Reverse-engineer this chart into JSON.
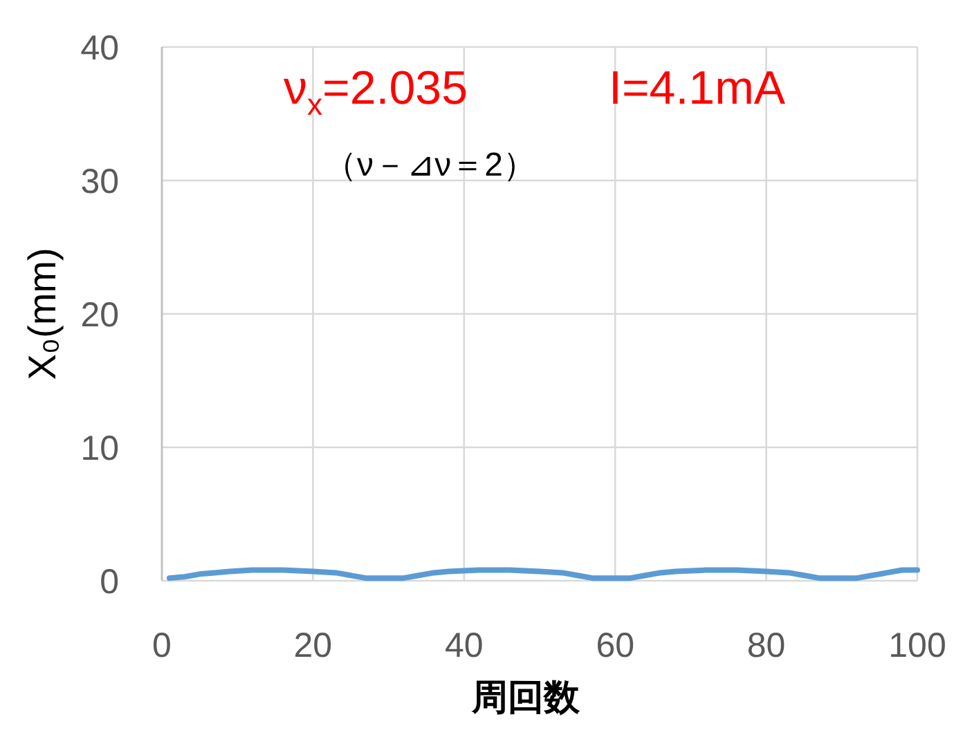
{
  "chart_data": {
    "type": "line",
    "xlabel": "周回数",
    "ylabel": "X₀(mm)",
    "annotations": [
      "ν$_{x}$=2.035",
      "I=4.1mA",
      "（ν－⊿ν＝2）"
    ],
    "xlim": [
      0,
      100
    ],
    "xticks": [
      0,
      20,
      40,
      60,
      80,
      100
    ],
    "ylim": [
      0,
      40
    ],
    "yticks": [
      0,
      10,
      20,
      30,
      40
    ],
    "grid": true,
    "marker": "none",
    "line_style": "solid",
    "series": [
      {
        "color": "#5b9bd5",
        "x": [
          1,
          3,
          5,
          7,
          9,
          12,
          16,
          20,
          23,
          25,
          27,
          29,
          31,
          32,
          34,
          36,
          38,
          42,
          46,
          50,
          53,
          55,
          57,
          60,
          62,
          64,
          66,
          68,
          72,
          76,
          80,
          83,
          85,
          87,
          90,
          92,
          94,
          96,
          98,
          100
        ],
        "values": [
          0.2,
          0.3,
          0.5,
          0.6,
          0.7,
          0.8,
          0.8,
          0.7,
          0.6,
          0.4,
          0.2,
          0.2,
          0.2,
          0.2,
          0.4,
          0.6,
          0.7,
          0.8,
          0.8,
          0.7,
          0.6,
          0.4,
          0.2,
          0.2,
          0.2,
          0.4,
          0.6,
          0.7,
          0.8,
          0.8,
          0.7,
          0.6,
          0.4,
          0.2,
          0.2,
          0.2,
          0.4,
          0.6,
          0.8,
          0.8
        ]
      }
    ]
  }
}
